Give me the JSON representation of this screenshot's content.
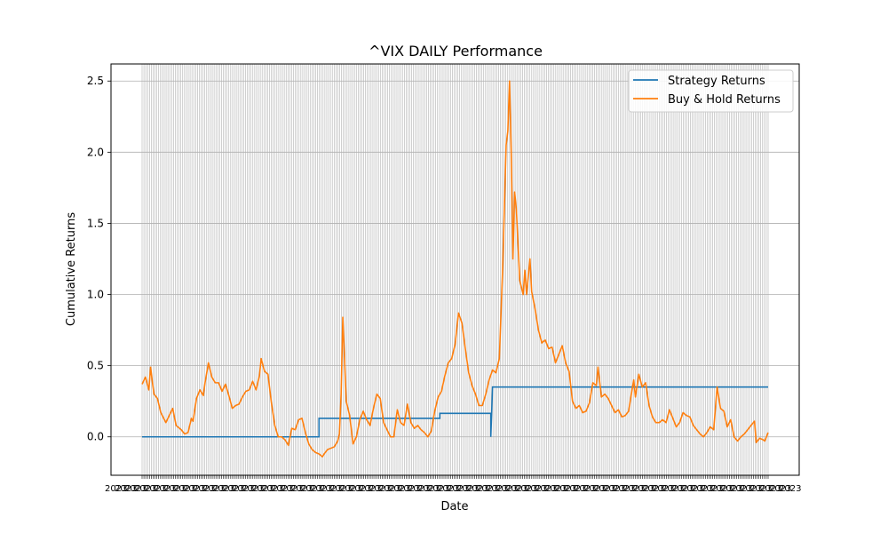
{
  "chart_data": {
    "type": "line",
    "title": "^VIX DAILY Performance",
    "xlabel": "Date",
    "ylabel": "Cumulative Returns",
    "ylim": [
      -0.27,
      2.62
    ],
    "yticks": [
      0.0,
      0.5,
      1.0,
      1.5,
      2.0,
      2.5
    ],
    "ytick_labels": [
      "0.0",
      "0.5",
      "1.0",
      "1.5",
      "2.0",
      "2.5"
    ],
    "grid": true,
    "legend_placement": "top-right",
    "colors": {
      "strategy": "#1f77b4",
      "buyhold": "#ff7f0e",
      "grid": "#b0b0b0"
    },
    "n_points": 340,
    "series": [
      {
        "name": "Strategy Returns",
        "steps": [
          {
            "from": 0,
            "value": 0.0
          },
          {
            "from": 104,
            "value": 0.13
          },
          {
            "from": 175,
            "value": 0.165
          },
          {
            "from": 203,
            "value": 0.165
          },
          {
            "from": 205,
            "value": 0.0
          },
          {
            "from": 206,
            "value": 0.35
          }
        ]
      },
      {
        "name": "Buy & Hold Returns",
        "keypoints": [
          [
            0,
            0.37
          ],
          [
            2,
            0.42
          ],
          [
            4,
            0.33
          ],
          [
            5,
            0.49
          ],
          [
            6,
            0.39
          ],
          [
            7,
            0.3
          ],
          [
            9,
            0.27
          ],
          [
            11,
            0.17
          ],
          [
            14,
            0.1
          ],
          [
            16,
            0.15
          ],
          [
            18,
            0.2
          ],
          [
            20,
            0.08
          ],
          [
            23,
            0.05
          ],
          [
            25,
            0.02
          ],
          [
            27,
            0.03
          ],
          [
            29,
            0.13
          ],
          [
            30,
            0.11
          ],
          [
            32,
            0.27
          ],
          [
            34,
            0.33
          ],
          [
            36,
            0.29
          ],
          [
            37,
            0.38
          ],
          [
            39,
            0.52
          ],
          [
            41,
            0.42
          ],
          [
            43,
            0.38
          ],
          [
            45,
            0.38
          ],
          [
            47,
            0.32
          ],
          [
            49,
            0.37
          ],
          [
            51,
            0.29
          ],
          [
            53,
            0.2
          ],
          [
            55,
            0.22
          ],
          [
            57,
            0.23
          ],
          [
            59,
            0.28
          ],
          [
            61,
            0.32
          ],
          [
            63,
            0.33
          ],
          [
            65,
            0.39
          ],
          [
            67,
            0.33
          ],
          [
            69,
            0.43
          ],
          [
            70,
            0.55
          ],
          [
            72,
            0.46
          ],
          [
            74,
            0.44
          ],
          [
            76,
            0.24
          ],
          [
            78,
            0.08
          ],
          [
            80,
            0.0
          ],
          [
            82,
            0.0
          ],
          [
            84,
            -0.02
          ],
          [
            86,
            -0.06
          ],
          [
            88,
            0.06
          ],
          [
            90,
            0.05
          ],
          [
            92,
            0.12
          ],
          [
            94,
            0.13
          ],
          [
            96,
            0.03
          ],
          [
            98,
            -0.05
          ],
          [
            100,
            -0.09
          ],
          [
            102,
            -0.11
          ],
          [
            104,
            -0.12
          ],
          [
            106,
            -0.14
          ],
          [
            107,
            -0.12
          ],
          [
            109,
            -0.09
          ],
          [
            111,
            -0.08
          ],
          [
            113,
            -0.07
          ],
          [
            115,
            -0.03
          ],
          [
            116,
            0.02
          ],
          [
            117,
            0.3
          ],
          [
            118,
            0.84
          ],
          [
            119,
            0.55
          ],
          [
            120,
            0.25
          ],
          [
            122,
            0.15
          ],
          [
            124,
            -0.05
          ],
          [
            126,
            0.0
          ],
          [
            128,
            0.12
          ],
          [
            130,
            0.18
          ],
          [
            132,
            0.12
          ],
          [
            134,
            0.08
          ],
          [
            136,
            0.2
          ],
          [
            138,
            0.3
          ],
          [
            140,
            0.27
          ],
          [
            142,
            0.1
          ],
          [
            144,
            0.05
          ],
          [
            146,
            0.0
          ],
          [
            148,
            0.0
          ],
          [
            150,
            0.19
          ],
          [
            152,
            0.1
          ],
          [
            154,
            0.08
          ],
          [
            156,
            0.23
          ],
          [
            158,
            0.1
          ],
          [
            160,
            0.06
          ],
          [
            162,
            0.08
          ],
          [
            164,
            0.05
          ],
          [
            166,
            0.03
          ],
          [
            168,
            0.0
          ],
          [
            170,
            0.04
          ],
          [
            172,
            0.18
          ],
          [
            174,
            0.28
          ],
          [
            176,
            0.32
          ],
          [
            178,
            0.43
          ],
          [
            180,
            0.52
          ],
          [
            182,
            0.55
          ],
          [
            184,
            0.65
          ],
          [
            186,
            0.87
          ],
          [
            188,
            0.8
          ],
          [
            190,
            0.62
          ],
          [
            192,
            0.45
          ],
          [
            194,
            0.36
          ],
          [
            196,
            0.3
          ],
          [
            198,
            0.22
          ],
          [
            200,
            0.22
          ],
          [
            202,
            0.3
          ],
          [
            204,
            0.4
          ],
          [
            206,
            0.47
          ],
          [
            208,
            0.45
          ],
          [
            210,
            0.55
          ],
          [
            212,
            1.2
          ],
          [
            214,
            2.05
          ],
          [
            215,
            2.15
          ],
          [
            216,
            2.5
          ],
          [
            217,
            2.0
          ],
          [
            218,
            1.25
          ],
          [
            219,
            1.72
          ],
          [
            220,
            1.6
          ],
          [
            222,
            1.1
          ],
          [
            224,
            1.0
          ],
          [
            225,
            1.17
          ],
          [
            226,
            1.0
          ],
          [
            228,
            1.25
          ],
          [
            229,
            1.02
          ],
          [
            231,
            0.9
          ],
          [
            233,
            0.75
          ],
          [
            235,
            0.66
          ],
          [
            237,
            0.68
          ],
          [
            239,
            0.62
          ],
          [
            241,
            0.63
          ],
          [
            243,
            0.52
          ],
          [
            245,
            0.58
          ],
          [
            247,
            0.64
          ],
          [
            249,
            0.52
          ],
          [
            251,
            0.46
          ],
          [
            253,
            0.25
          ],
          [
            255,
            0.2
          ],
          [
            257,
            0.22
          ],
          [
            259,
            0.17
          ],
          [
            261,
            0.18
          ],
          [
            263,
            0.24
          ],
          [
            265,
            0.38
          ],
          [
            267,
            0.36
          ],
          [
            268,
            0.49
          ],
          [
            270,
            0.28
          ],
          [
            272,
            0.3
          ],
          [
            274,
            0.27
          ],
          [
            276,
            0.22
          ],
          [
            278,
            0.17
          ],
          [
            280,
            0.19
          ],
          [
            282,
            0.14
          ],
          [
            284,
            0.15
          ],
          [
            286,
            0.18
          ],
          [
            288,
            0.33
          ],
          [
            289,
            0.4
          ],
          [
            290,
            0.28
          ],
          [
            292,
            0.44
          ],
          [
            294,
            0.35
          ],
          [
            296,
            0.38
          ],
          [
            298,
            0.22
          ],
          [
            300,
            0.14
          ],
          [
            302,
            0.1
          ],
          [
            304,
            0.1
          ],
          [
            306,
            0.12
          ],
          [
            308,
            0.1
          ],
          [
            310,
            0.19
          ],
          [
            312,
            0.13
          ],
          [
            314,
            0.07
          ],
          [
            316,
            0.1
          ],
          [
            318,
            0.17
          ],
          [
            320,
            0.15
          ],
          [
            322,
            0.14
          ],
          [
            324,
            0.08
          ],
          [
            326,
            0.05
          ],
          [
            328,
            0.02
          ],
          [
            330,
            0.0
          ],
          [
            332,
            0.03
          ],
          [
            334,
            0.07
          ],
          [
            336,
            0.05
          ],
          [
            338,
            0.35
          ],
          [
            340,
            0.2
          ],
          [
            342,
            0.18
          ],
          [
            344,
            0.07
          ],
          [
            346,
            0.12
          ],
          [
            348,
            0.0
          ],
          [
            350,
            -0.03
          ],
          [
            352,
            0.0
          ],
          [
            354,
            0.02
          ],
          [
            356,
            0.05
          ],
          [
            358,
            0.08
          ],
          [
            360,
            0.11
          ],
          [
            361,
            -0.04
          ],
          [
            363,
            -0.01
          ],
          [
            365,
            -0.02
          ],
          [
            366,
            -0.03
          ],
          [
            368,
            0.03
          ]
        ]
      }
    ]
  }
}
